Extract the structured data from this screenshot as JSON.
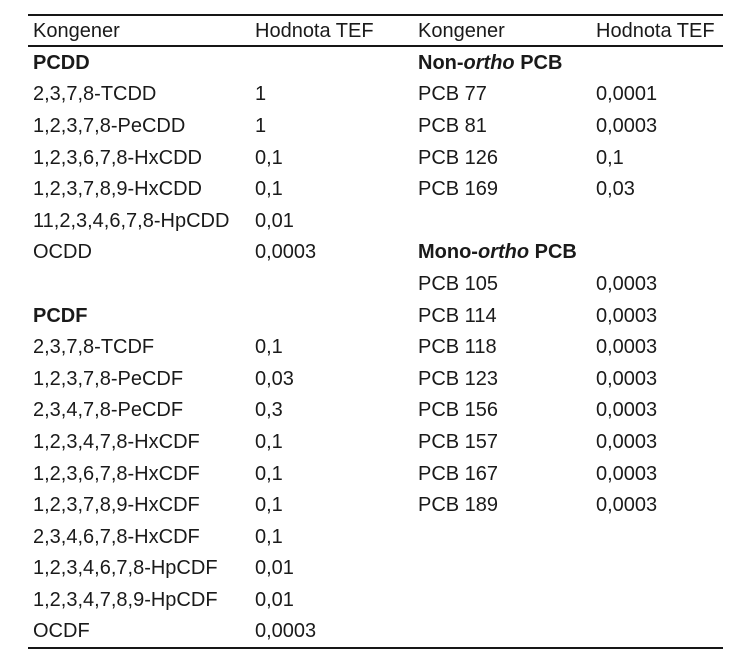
{
  "page": {
    "background": "#ffffff",
    "text_color": "#1a1a1a",
    "rule_color": "#161616"
  },
  "table": {
    "header": {
      "col1": "Kongener",
      "col2": "Hodnota TEF",
      "col3": "Kongener",
      "col4": "Hodnota TEF"
    },
    "rows": [
      {
        "c1": {
          "text": "PCDD",
          "bold": true
        },
        "v1": "",
        "c3": {
          "bold": true,
          "parts": [
            {
              "text": "Non-"
            },
            {
              "text": "ortho",
              "italic": true
            },
            {
              "text": " PCB"
            }
          ]
        },
        "v3": ""
      },
      {
        "c1": "2,3,7,8-TCDD",
        "v1": "1",
        "c3": "PCB 77",
        "v3": "0,0001"
      },
      {
        "c1": "1,2,3,7,8-PeCDD",
        "v1": "1",
        "c3": "PCB 81",
        "v3": "0,0003"
      },
      {
        "c1": "1,2,3,6,7,8-HxCDD",
        "v1": "0,1",
        "c3": "PCB 126",
        "v3": "0,1"
      },
      {
        "c1": "1,2,3,7,8,9-HxCDD",
        "v1": "0,1",
        "c3": "PCB 169",
        "v3": "0,03"
      },
      {
        "c1": "11,2,3,4,6,7,8-HpCDD",
        "v1": "0,01",
        "c3": "",
        "v3": ""
      },
      {
        "c1": "OCDD",
        "v1": "0,0003",
        "c3": {
          "bold": true,
          "parts": [
            {
              "text": "Mono-"
            },
            {
              "text": "ortho",
              "italic": true
            },
            {
              "text": " PCB"
            }
          ]
        },
        "v3": ""
      },
      {
        "c1": "",
        "v1": "",
        "c3": "PCB 105",
        "v3": "0,0003"
      },
      {
        "c1": {
          "text": "PCDF",
          "bold": true
        },
        "v1": "",
        "c3": "PCB 114",
        "v3": "0,0003"
      },
      {
        "c1": "2,3,7,8-TCDF",
        "v1": "0,1",
        "c3": "PCB 118",
        "v3": "0,0003"
      },
      {
        "c1": "1,2,3,7,8-PeCDF",
        "v1": "0,03",
        "c3": "PCB 123",
        "v3": "0,0003"
      },
      {
        "c1": "2,3,4,7,8-PeCDF",
        "v1": "0,3",
        "c3": "PCB 156",
        "v3": "0,0003"
      },
      {
        "c1": "1,2,3,4,7,8-HxCDF",
        "v1": "0,1",
        "c3": "PCB 157",
        "v3": "0,0003"
      },
      {
        "c1": "1,2,3,6,7,8-HxCDF",
        "v1": "0,1",
        "c3": "PCB 167",
        "v3": "0,0003"
      },
      {
        "c1": "1,2,3,7,8,9-HxCDF",
        "v1": "0,1",
        "c3": "PCB 189",
        "v3": "0,0003"
      },
      {
        "c1": "2,3,4,6,7,8-HxCDF",
        "v1": "0,1",
        "c3": "",
        "v3": ""
      },
      {
        "c1": "1,2,3,4,6,7,8-HpCDF",
        "v1": "0,01",
        "c3": "",
        "v3": ""
      },
      {
        "c1": "1,2,3,4,7,8,9-HpCDF",
        "v1": "0,01",
        "c3": "",
        "v3": ""
      },
      {
        "c1": "OCDF",
        "v1": "0,0003",
        "c3": "",
        "v3": ""
      }
    ]
  }
}
